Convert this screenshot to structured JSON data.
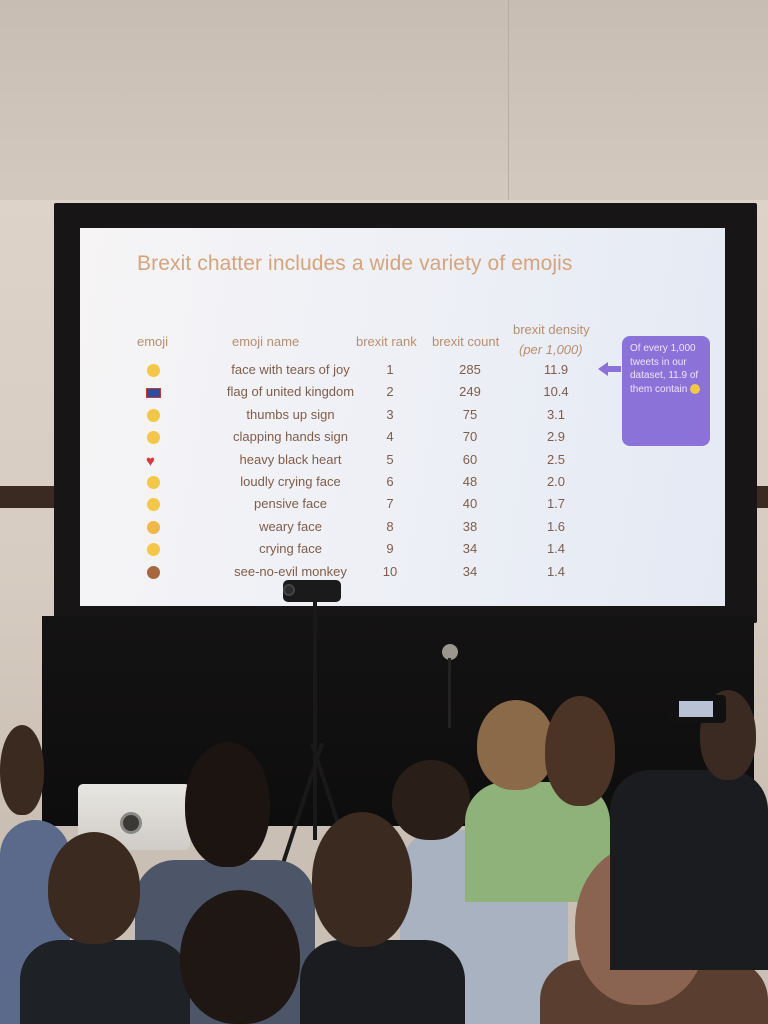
{
  "slide": {
    "title": "Brexit chatter includes a wide variety of emojis",
    "headers": {
      "emoji": "emoji",
      "emoji_name": "emoji name",
      "rank": "brexit rank",
      "count": "brexit count",
      "density": "brexit density",
      "density_sub": "(per 1,000)"
    },
    "rows": [
      {
        "icon": "face-with-tears-of-joy-icon",
        "color": "#f3c84a",
        "name": "face with tears of joy",
        "rank": "1",
        "count": "285",
        "density": "11.9"
      },
      {
        "icon": "flag-of-united-kingdom-icon",
        "color": "#2b4f9b",
        "name": "flag of united kingdom",
        "rank": "2",
        "count": "249",
        "density": "10.4"
      },
      {
        "icon": "thumbs-up-sign-icon",
        "color": "#f2c646",
        "name": "thumbs up sign",
        "rank": "3",
        "count": "75",
        "density": "3.1"
      },
      {
        "icon": "clapping-hands-sign-icon",
        "color": "#f3c74b",
        "name": "clapping hands sign",
        "rank": "4",
        "count": "70",
        "density": "2.9"
      },
      {
        "icon": "heavy-black-heart-icon",
        "color": "#d83b3b",
        "name": "heavy black heart",
        "rank": "5",
        "count": "60",
        "density": "2.5"
      },
      {
        "icon": "loudly-crying-face-icon",
        "color": "#f3c84a",
        "name": "loudly crying face",
        "rank": "6",
        "count": "48",
        "density": "2.0"
      },
      {
        "icon": "pensive-face-icon",
        "color": "#f3c84a",
        "name": "pensive face",
        "rank": "7",
        "count": "40",
        "density": "1.7"
      },
      {
        "icon": "weary-face-icon",
        "color": "#f0b84a",
        "name": "weary face",
        "rank": "8",
        "count": "38",
        "density": "1.6"
      },
      {
        "icon": "crying-face-icon",
        "color": "#f3c84a",
        "name": "crying face",
        "rank": "9",
        "count": "34",
        "density": "1.4"
      },
      {
        "icon": "see-no-evil-monkey-icon",
        "color": "#a8683e",
        "name": "see-no-evil monkey",
        "rank": "10",
        "count": "34",
        "density": "1.4"
      }
    ],
    "callout": {
      "text": "Of every 1,000 tweets in our dataset, 11.9 of them contain",
      "icon": "face-with-tears-of-joy-icon",
      "color": "#8a72d8"
    }
  }
}
